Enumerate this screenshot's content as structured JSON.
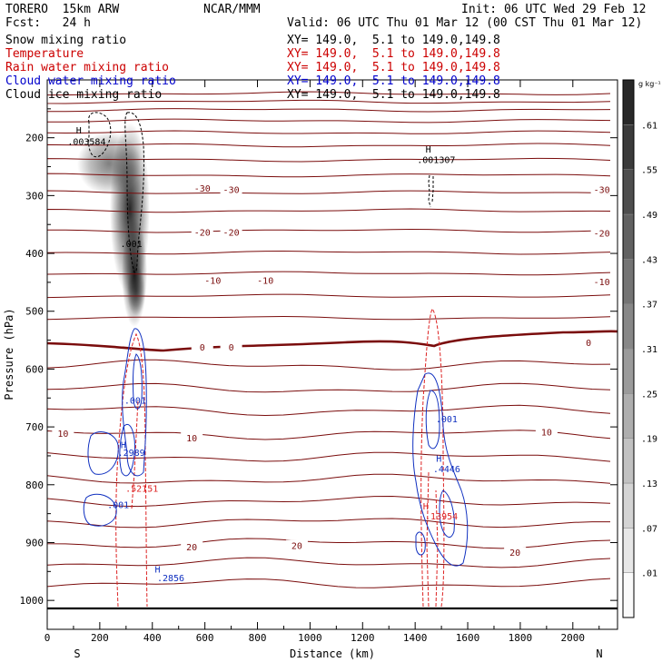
{
  "header": {
    "left_line1": "TORERO  15km ARW",
    "left_line2": "Fcst:   24 h",
    "center": "NCAR/MMM",
    "init": "Init: 06 UTC Wed 29 Feb 12",
    "valid": "Valid: 06 UTC Thu 01 Mar 12 (00 CST Thu 01 Mar 12)"
  },
  "fields": [
    {
      "label": "Snow mixing ratio",
      "xy": "XY= 149.0,  5.1 to 149.0,149.8",
      "color": "#000000"
    },
    {
      "label": "Temperature",
      "xy": "XY= 149.0,  5.1 to 149.0,149.8",
      "color": "#cc0000"
    },
    {
      "label": "Rain water mixing ratio",
      "xy": "XY= 149.0,  5.1 to 149.0,149.8",
      "color": "#cc0000"
    },
    {
      "label": "Cloud water mixing ratio",
      "xy": "XY= 149.0,  5.1 to 149.0,149.8",
      "color": "#0000cc"
    },
    {
      "label": "Cloud ice mixing ratio",
      "xy": "XY= 149.0,  5.1 to 149.0,149.8",
      "color": "#000000"
    }
  ],
  "colors": {
    "temperature": "#7a0c0c",
    "rain": "#dd2222",
    "cloud_water": "#1030c0",
    "cloud_ice": "#000000",
    "freezing_line": "#7a0c0c"
  },
  "chart_data": {
    "type": "heatmap",
    "xlabel": "Distance (km)",
    "ylabel": "Pressure (hPa)",
    "xlim": [
      0,
      2170
    ],
    "ylim": [
      1050,
      100
    ],
    "x_ticks": [
      0,
      200,
      400,
      600,
      800,
      1000,
      1200,
      1400,
      1600,
      1800,
      2000
    ],
    "y_ticks": [
      200,
      300,
      400,
      500,
      600,
      700,
      800,
      900,
      1000
    ],
    "x_end_labels": {
      "left": "S",
      "right": "N"
    },
    "colorbar": {
      "unit": "g kg⁻¹",
      "ticks": [
        ".01",
        ".07",
        ".13",
        ".19",
        ".25",
        ".31",
        ".37",
        ".43",
        ".49",
        ".55",
        ".61"
      ],
      "bands": 12
    },
    "temperature_contours": [
      {
        "value": -30,
        "labels": [
          {
            "x": 590,
            "p": 290,
            "text": "-30"
          },
          {
            "x": 700,
            "p": 292,
            "text": "-30"
          },
          {
            "x": 2110,
            "p": 292,
            "text": "-30"
          }
        ]
      },
      {
        "value": -20,
        "labels": [
          {
            "x": 590,
            "p": 366,
            "text": "-20"
          },
          {
            "x": 700,
            "p": 366,
            "text": "-20"
          },
          {
            "x": 2110,
            "p": 368,
            "text": "-20"
          }
        ]
      },
      {
        "value": -10,
        "labels": [
          {
            "x": 630,
            "p": 449,
            "text": "-10"
          },
          {
            "x": 830,
            "p": 449,
            "text": "-10"
          },
          {
            "x": 2110,
            "p": 452,
            "text": "-10"
          }
        ]
      },
      {
        "value": 0,
        "labels": [
          {
            "x": 590,
            "p": 565,
            "text": "0"
          },
          {
            "x": 700,
            "p": 565,
            "text": "0"
          },
          {
            "x": 2060,
            "p": 557,
            "text": "0"
          }
        ]
      },
      {
        "value": 10,
        "labels": [
          {
            "x": 60,
            "p": 714,
            "text": "10"
          },
          {
            "x": 550,
            "p": 722,
            "text": "10"
          },
          {
            "x": 1900,
            "p": 712,
            "text": "10"
          }
        ]
      },
      {
        "value": 20,
        "labels": [
          {
            "x": 550,
            "p": 910,
            "text": "20"
          },
          {
            "x": 950,
            "p": 908,
            "text": "20"
          },
          {
            "x": 1780,
            "p": 920,
            "text": "20"
          }
        ]
      }
    ],
    "maxima": [
      {
        "field": "cloud_ice",
        "x": 120,
        "p": 193,
        "text": "H"
      },
      {
        "field": "cloud_ice",
        "x": 150,
        "p": 212,
        "text": ".003584"
      },
      {
        "field": "cloud_ice",
        "x": 1450,
        "p": 226,
        "text": "H"
      },
      {
        "field": "cloud_ice",
        "x": 1480,
        "p": 244,
        "text": ".001307"
      },
      {
        "field": "snow",
        "x": 320,
        "p": 389,
        "text": ".001"
      },
      {
        "field": "cloud_water",
        "x": 335,
        "p": 660,
        "text": ".001"
      },
      {
        "field": "cloud_water",
        "x": 290,
        "p": 737,
        "text": "H"
      },
      {
        "field": "cloud_water",
        "x": 320,
        "p": 750,
        "text": ".2989"
      },
      {
        "field": "rain",
        "x": 360,
        "p": 812,
        "text": ".52151"
      },
      {
        "field": "cloud_water",
        "x": 270,
        "p": 840,
        "text": ".001"
      },
      {
        "field": "cloud_water",
        "x": 420,
        "p": 952,
        "text": "H"
      },
      {
        "field": "cloud_water",
        "x": 470,
        "p": 967,
        "text": ".2856"
      },
      {
        "field": "cloud_water",
        "x": 1520,
        "p": 692,
        "text": ".001"
      },
      {
        "field": "cloud_water",
        "x": 1490,
        "p": 760,
        "text": "H"
      },
      {
        "field": "cloud_water",
        "x": 1520,
        "p": 778,
        "text": ".4446"
      },
      {
        "field": "rain",
        "x": 1440,
        "p": 843,
        "text": "H"
      },
      {
        "field": "rain",
        "x": 1500,
        "p": 860,
        "text": ".13954"
      }
    ]
  }
}
